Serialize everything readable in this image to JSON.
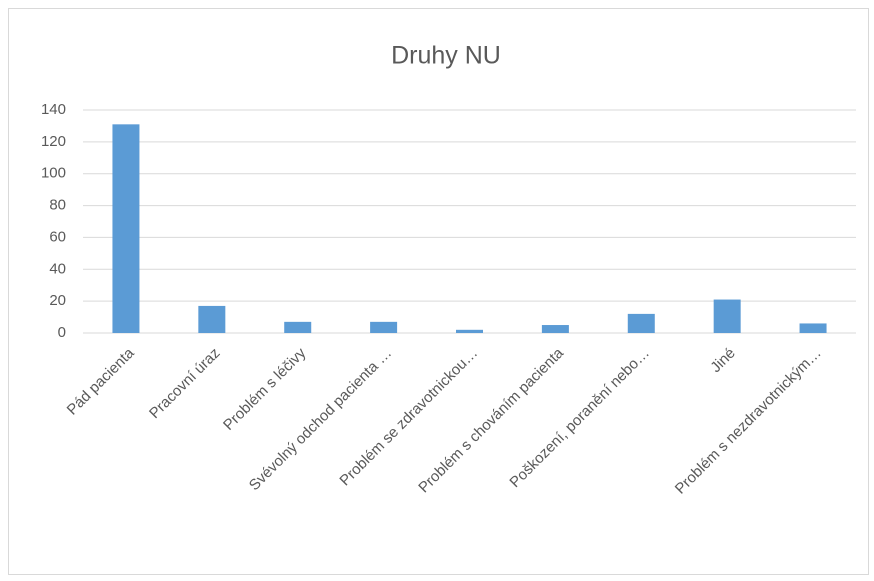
{
  "chart_data": {
    "type": "bar",
    "title": "Druhy NU",
    "categories": [
      "Pád pacienta",
      "Pracovní úraz",
      "Problém s léčivy",
      "Svévolný odchod pacienta …",
      "Problém se zdravotnickou…",
      "Problém s chováním pacienta",
      "Poškození, poranění nebo…",
      "Jiné",
      "Problém s nezdravotnickým…"
    ],
    "values": [
      131,
      17,
      7,
      7,
      2,
      5,
      12,
      21,
      6
    ],
    "color": "#5b9bd5",
    "ylim": [
      0,
      140
    ],
    "yticks": [
      0,
      20,
      40,
      60,
      80,
      100,
      120,
      140
    ],
    "grid": true
  }
}
